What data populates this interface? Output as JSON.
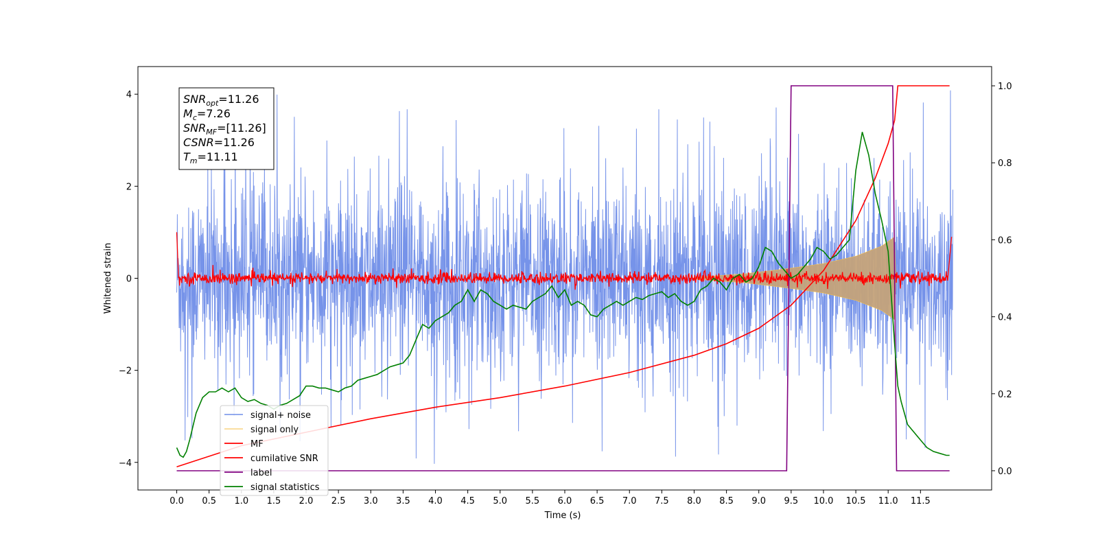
{
  "chart_data": {
    "type": "line",
    "title": "",
    "xlabel": "Time (s)",
    "ylabel": "Whitened strain",
    "xlim": [
      -0.6,
      12.6
    ],
    "ylim": [
      -4.6,
      4.6
    ],
    "y2lim": [
      -0.05,
      1.05
    ],
    "xticks": [
      0.0,
      0.5,
      1.0,
      1.5,
      2.0,
      2.5,
      3.0,
      3.5,
      4.0,
      4.5,
      5.0,
      5.5,
      6.0,
      6.5,
      7.0,
      7.5,
      8.0,
      8.5,
      9.0,
      9.5,
      10.0,
      10.5,
      11.0,
      11.5
    ],
    "xtick_labels": [
      "0.0",
      "0.5",
      "1.0",
      "1.5",
      "2.0",
      "2.5",
      "3.0",
      "3.5",
      "4.0",
      "4.5",
      "5.0",
      "5.5",
      "6.0",
      "6.5",
      "7.0",
      "7.5",
      "8.0",
      "8.5",
      "9.0",
      "9.5",
      "10.0",
      "10.5",
      "11.0",
      "11.5"
    ],
    "yticks": [
      -4,
      -2,
      0,
      2,
      4
    ],
    "ytick_labels": [
      "−4",
      "−2",
      "0",
      "2",
      "4"
    ],
    "y2ticks": [
      0.0,
      0.2,
      0.4,
      0.6,
      0.8,
      1.0
    ],
    "y2tick_labels": [
      "0.0",
      "0.2",
      "0.4",
      "0.6",
      "0.8",
      "1.0"
    ],
    "legend_location": "lower-left",
    "info_box": {
      "lines": [
        {
          "sym": "SNR",
          "sub": "opt",
          "val": "=11.26"
        },
        {
          "sym": "M",
          "sub": "c",
          "val": "=7.26"
        },
        {
          "sym": "SNR",
          "sub": "MF",
          "val": "=[11.26]"
        },
        {
          "sym": "CSNR",
          "sub": "",
          "val": "=11.26"
        },
        {
          "sym": "T",
          "sub": "m",
          "val": "=11.11"
        }
      ]
    },
    "series": [
      {
        "name": "signal+ noise",
        "color": "#6f8de8",
        "axis": "left",
        "kind": "noise",
        "t_range": [
          0.0,
          12.0
        ],
        "amplitude_sigma": 1.0,
        "peak_max": 4.15,
        "peak_min": -4.05
      },
      {
        "name": "signal only",
        "color": "#f5c04a",
        "axis": "left",
        "kind": "chirp",
        "envelope": {
          "t": [
            8.0,
            8.8,
            9.5,
            10.0,
            10.5,
            10.9,
            11.1,
            11.12
          ],
          "amp": [
            0.02,
            0.1,
            0.22,
            0.32,
            0.48,
            0.7,
            0.9,
            0.0
          ]
        },
        "fill_color": "#c4a27a"
      },
      {
        "name": "MF",
        "color": "#ff0000",
        "axis": "left",
        "kind": "mf",
        "start_value": 1.0,
        "amplitude": 0.1,
        "end_value": 0.9
      },
      {
        "name": "cumilative SNR",
        "color": "#ff0000",
        "axis": "right",
        "x": [
          0.0,
          1.0,
          2.0,
          3.0,
          4.0,
          5.0,
          6.0,
          7.0,
          8.0,
          8.5,
          9.0,
          9.5,
          10.0,
          10.5,
          10.8,
          11.0,
          11.1,
          11.15,
          11.5,
          11.95
        ],
        "values": [
          0.01,
          0.065,
          0.1,
          0.135,
          0.165,
          0.19,
          0.22,
          0.255,
          0.3,
          0.33,
          0.37,
          0.43,
          0.52,
          0.65,
          0.76,
          0.85,
          0.91,
          1.0,
          1.0,
          1.0
        ]
      },
      {
        "name": "label",
        "color": "#800080",
        "axis": "right",
        "x": [
          0.0,
          9.43,
          9.5,
          11.07,
          11.13,
          11.95
        ],
        "values": [
          0.0,
          0.0,
          1.0,
          1.0,
          0.0,
          0.0
        ]
      },
      {
        "name": "signal statistics",
        "color": "#008000",
        "axis": "right",
        "x": [
          0.0,
          0.05,
          0.1,
          0.15,
          0.2,
          0.3,
          0.4,
          0.5,
          0.6,
          0.7,
          0.8,
          0.9,
          1.0,
          1.1,
          1.2,
          1.3,
          1.4,
          1.5,
          1.6,
          1.7,
          1.8,
          1.9,
          2.0,
          2.1,
          2.2,
          2.3,
          2.4,
          2.5,
          2.6,
          2.7,
          2.8,
          2.9,
          3.0,
          3.1,
          3.2,
          3.3,
          3.4,
          3.5,
          3.6,
          3.7,
          3.8,
          3.9,
          4.0,
          4.1,
          4.2,
          4.3,
          4.4,
          4.5,
          4.6,
          4.7,
          4.8,
          4.9,
          5.0,
          5.1,
          5.2,
          5.3,
          5.4,
          5.5,
          5.6,
          5.7,
          5.8,
          5.9,
          6.0,
          6.1,
          6.2,
          6.3,
          6.4,
          6.5,
          6.6,
          6.7,
          6.8,
          6.9,
          7.0,
          7.1,
          7.2,
          7.3,
          7.4,
          7.5,
          7.6,
          7.7,
          7.8,
          7.9,
          8.0,
          8.1,
          8.2,
          8.3,
          8.4,
          8.5,
          8.6,
          8.7,
          8.8,
          8.9,
          9.0,
          9.1,
          9.2,
          9.3,
          9.4,
          9.5,
          9.6,
          9.7,
          9.8,
          9.9,
          10.0,
          10.1,
          10.2,
          10.3,
          10.4,
          10.5,
          10.6,
          10.7,
          10.8,
          10.9,
          11.0,
          11.05,
          11.1,
          11.15,
          11.2,
          11.3,
          11.4,
          11.5,
          11.6,
          11.7,
          11.8,
          11.9,
          11.95
        ],
        "values": [
          0.06,
          0.04,
          0.035,
          0.05,
          0.08,
          0.15,
          0.19,
          0.205,
          0.205,
          0.215,
          0.205,
          0.215,
          0.19,
          0.18,
          0.185,
          0.175,
          0.17,
          0.16,
          0.17,
          0.175,
          0.185,
          0.195,
          0.22,
          0.22,
          0.215,
          0.215,
          0.21,
          0.205,
          0.215,
          0.22,
          0.235,
          0.24,
          0.245,
          0.25,
          0.26,
          0.27,
          0.275,
          0.28,
          0.3,
          0.34,
          0.38,
          0.37,
          0.39,
          0.4,
          0.41,
          0.43,
          0.44,
          0.47,
          0.44,
          0.47,
          0.46,
          0.44,
          0.43,
          0.42,
          0.43,
          0.425,
          0.42,
          0.44,
          0.45,
          0.46,
          0.48,
          0.45,
          0.47,
          0.43,
          0.44,
          0.43,
          0.405,
          0.4,
          0.42,
          0.43,
          0.44,
          0.43,
          0.44,
          0.45,
          0.445,
          0.455,
          0.46,
          0.465,
          0.45,
          0.46,
          0.44,
          0.43,
          0.44,
          0.47,
          0.48,
          0.5,
          0.49,
          0.47,
          0.5,
          0.51,
          0.49,
          0.5,
          0.53,
          0.58,
          0.57,
          0.54,
          0.52,
          0.5,
          0.51,
          0.53,
          0.55,
          0.58,
          0.57,
          0.55,
          0.56,
          0.58,
          0.6,
          0.78,
          0.88,
          0.82,
          0.72,
          0.65,
          0.57,
          0.45,
          0.33,
          0.22,
          0.18,
          0.12,
          0.1,
          0.08,
          0.06,
          0.05,
          0.045,
          0.04,
          0.04
        ]
      }
    ]
  }
}
